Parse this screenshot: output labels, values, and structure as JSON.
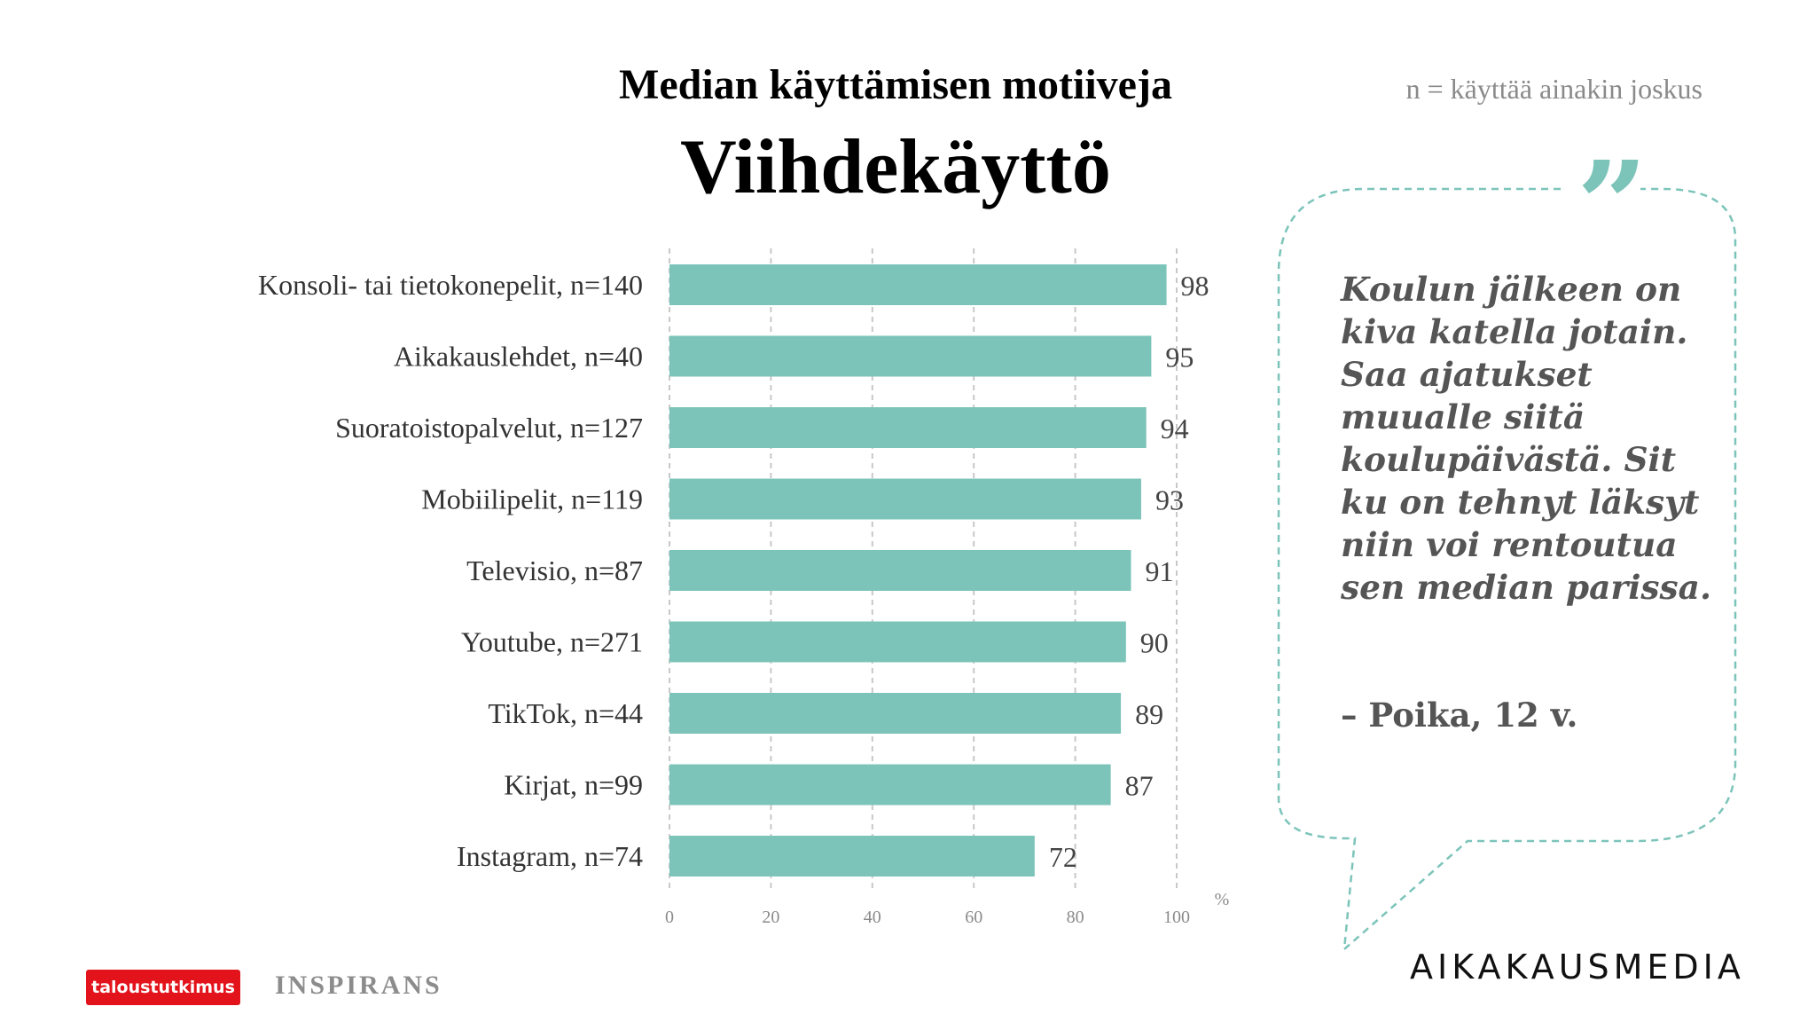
{
  "header": {
    "title": "Median käyttämisen motiiveja",
    "subtitle": "Viihdekäyttö",
    "note": "n = käyttää ainakin joskus"
  },
  "chart_data": {
    "type": "bar",
    "orientation": "horizontal",
    "categories": [
      "Konsoli- tai tietokonepelit, n=140",
      "Aikakauslehdet, n=40",
      "Suoratoistopalvelut, n=127",
      "Mobiilipelit, n=119",
      "Televisio, n=87",
      "Youtube, n=271",
      "TikTok, n=44",
      "Kirjat, n=99",
      "Instagram, n=74"
    ],
    "values": [
      98,
      95,
      94,
      93,
      91,
      90,
      89,
      87,
      72
    ],
    "xlim": [
      0,
      100
    ],
    "x_ticks": [
      0,
      20,
      40,
      60,
      80,
      100
    ],
    "x_unit": "%",
    "grid": "vertical dashed",
    "bar_color": "#7cc4ba"
  },
  "quote": {
    "mark": "”",
    "text": "Koulun jälkeen on kiva katella jotain. Saa ajatukset muualle siitä koulupäivästä. Sit ku on tehnyt läksyt niin voi rentoutua sen median parissa.",
    "author": "– Poika, 12 v.",
    "border_color": "#7cc4ba"
  },
  "logos": {
    "red_logo": "taloustutkimus",
    "inspirans": "INSPIRANS",
    "aikakausmedia": "AIKAKAUSMEDIA"
  }
}
